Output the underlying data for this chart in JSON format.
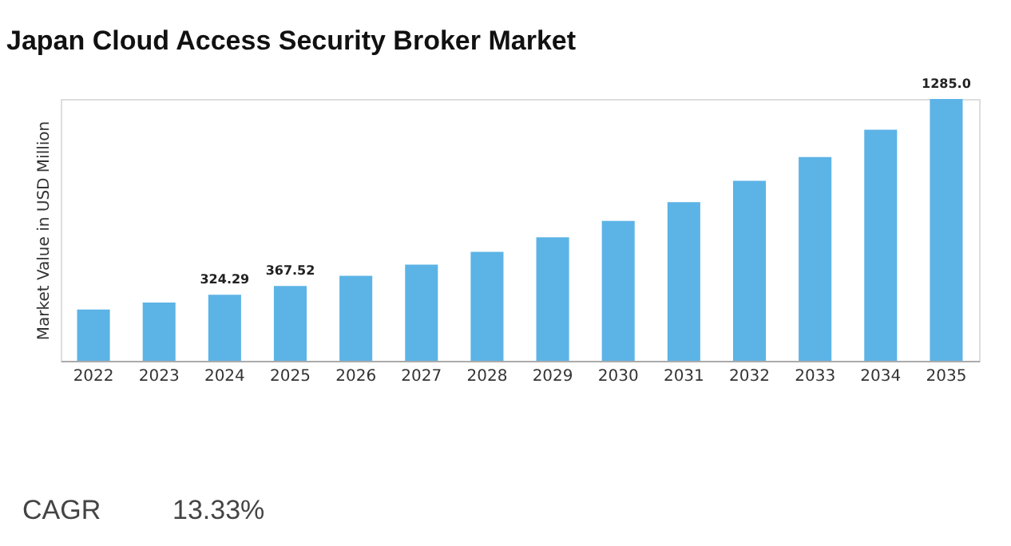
{
  "chart_data": {
    "type": "bar",
    "title": "Japan Cloud Access Security Broker Market",
    "ylabel": "Market Value in USD Million",
    "categories": [
      "2022",
      "2023",
      "2024",
      "2025",
      "2026",
      "2027",
      "2028",
      "2029",
      "2030",
      "2031",
      "2032",
      "2033",
      "2034",
      "2035"
    ],
    "values": [
      252,
      286,
      324.29,
      367.52,
      417,
      472,
      535,
      606,
      687,
      779,
      883,
      1000,
      1134,
      1285.0
    ],
    "value_labels": [
      null,
      null,
      "324.29",
      "367.52",
      null,
      null,
      null,
      null,
      null,
      null,
      null,
      null,
      null,
      "1285.0"
    ],
    "color": "#5cb3e6",
    "annotations": [
      "CAGR",
      "13.33%"
    ]
  }
}
